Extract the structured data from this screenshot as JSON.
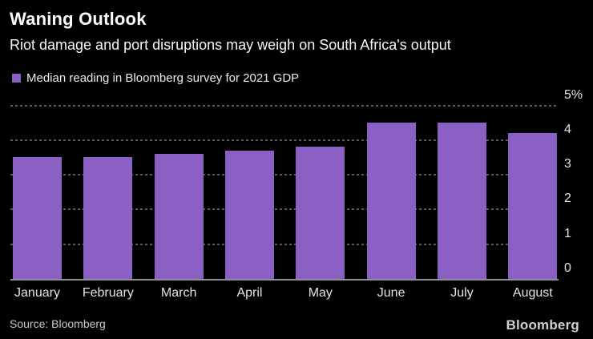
{
  "chart_data": {
    "type": "bar",
    "title": "Waning Outlook",
    "subtitle": "Riot damage and port disruptions may weigh on South Africa's output",
    "legend": "Median reading in Bloomberg survey for 2021 GDP",
    "legend_position": "top-left",
    "categories": [
      "January",
      "February",
      "March",
      "April",
      "May",
      "June",
      "July",
      "August"
    ],
    "values": [
      3.5,
      3.5,
      3.6,
      3.7,
      3.8,
      4.5,
      4.5,
      4.2
    ],
    "xlabel": "",
    "ylabel": "",
    "ylim": [
      0,
      5
    ],
    "yticks": [
      0,
      1,
      2,
      3,
      4,
      5
    ],
    "ytick_labels": [
      "0",
      "1",
      "2",
      "3",
      "4",
      "5%"
    ],
    "yaxis_side": "right",
    "grid": "horizontal-dotted",
    "bar_color": "#8a60c4",
    "source": "Source: Bloomberg",
    "brand": "Bloomberg"
  },
  "colors": {
    "background": "#000000",
    "title_text": "#ffffff",
    "axis_text": "#e3e3e3",
    "gridline": "#5a5a5a",
    "baseline": "#8f8f8f",
    "bar": "#8a60c4"
  }
}
